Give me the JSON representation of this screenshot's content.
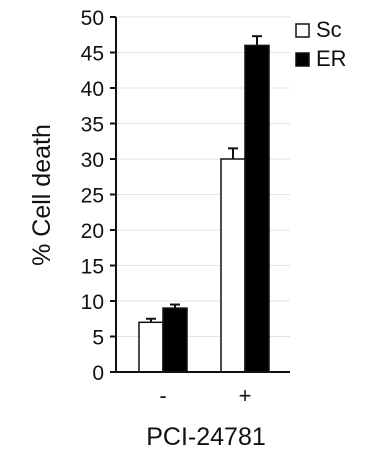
{
  "chart_data": {
    "type": "bar",
    "categories": [
      "-",
      "+"
    ],
    "series": [
      {
        "name": "Sc",
        "values": [
          7,
          30
        ],
        "errors": [
          0.5,
          1.5
        ],
        "fill": "#ffffff"
      },
      {
        "name": "ER",
        "values": [
          9,
          46
        ],
        "errors": [
          0.5,
          1.3
        ],
        "fill": "#000000"
      }
    ],
    "ylabel": "% Cell death",
    "xlabel": "PCI-24781",
    "ylim": [
      0,
      50
    ],
    "yticks": [
      0,
      5,
      10,
      15,
      20,
      25,
      30,
      35,
      40,
      45,
      50
    ],
    "grid": true,
    "legend": "top-right"
  }
}
